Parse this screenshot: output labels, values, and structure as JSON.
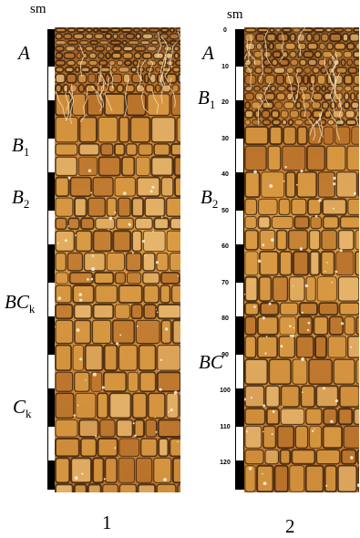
{
  "figure": {
    "depth_unit": "sm",
    "depth_ticks": [
      "0",
      "10",
      "20",
      "30",
      "40",
      "50",
      "60",
      "70",
      "80",
      "90",
      "100",
      "110",
      "120"
    ]
  },
  "profiles": [
    {
      "caption": "1",
      "horizons": [
        {
          "base": "A",
          "sub": ""
        },
        {
          "base": "B",
          "sub": "1"
        },
        {
          "base": "B",
          "sub": "2"
        },
        {
          "base": "BC",
          "sub": "k"
        },
        {
          "base": "C",
          "sub": "k"
        }
      ]
    },
    {
      "caption": "2",
      "horizons": [
        {
          "base": "A",
          "sub": ""
        },
        {
          "base": "B",
          "sub": "1"
        },
        {
          "base": "B",
          "sub": "2"
        },
        {
          "base": "BC",
          "sub": ""
        }
      ]
    }
  ],
  "colors": {
    "soil_light": "#d99a43",
    "soil_mid": "#b9722b",
    "soil_dark": "#6a3a16",
    "crack": "#2a1608",
    "topsoil": "#8a5a2c"
  }
}
